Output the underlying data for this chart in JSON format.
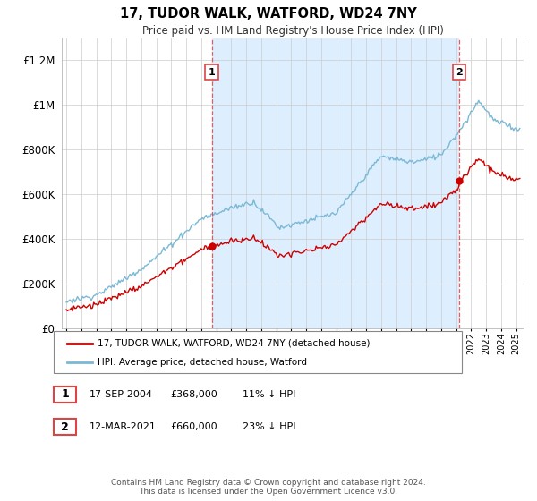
{
  "title": "17, TUDOR WALK, WATFORD, WD24 7NY",
  "subtitle": "Price paid vs. HM Land Registry's House Price Index (HPI)",
  "ylim": [
    0,
    1300000
  ],
  "yticks": [
    0,
    200000,
    400000,
    600000,
    800000,
    1000000,
    1200000
  ],
  "legend_line1": "17, TUDOR WALK, WATFORD, WD24 7NY (detached house)",
  "legend_line2": "HPI: Average price, detached house, Watford",
  "marker1_label": "1",
  "marker1_date": "17-SEP-2004",
  "marker1_price": "£368,000",
  "marker1_hpi": "11% ↓ HPI",
  "marker1_x": 2004.71,
  "marker1_y": 368000,
  "marker2_label": "2",
  "marker2_date": "12-MAR-2021",
  "marker2_price": "£660,000",
  "marker2_hpi": "23% ↓ HPI",
  "marker2_x": 2021.19,
  "marker2_y": 660000,
  "footer": "Contains HM Land Registry data © Crown copyright and database right 2024.\nThis data is licensed under the Open Government Licence v3.0.",
  "hpi_color": "#7bb8d4",
  "price_color": "#cc0000",
  "vline_color": "#dd4444",
  "shade_color": "#ddeeff",
  "background_color": "#ffffff",
  "grid_color": "#cccccc",
  "xlim_left": 1994.7,
  "xlim_right": 2025.5
}
